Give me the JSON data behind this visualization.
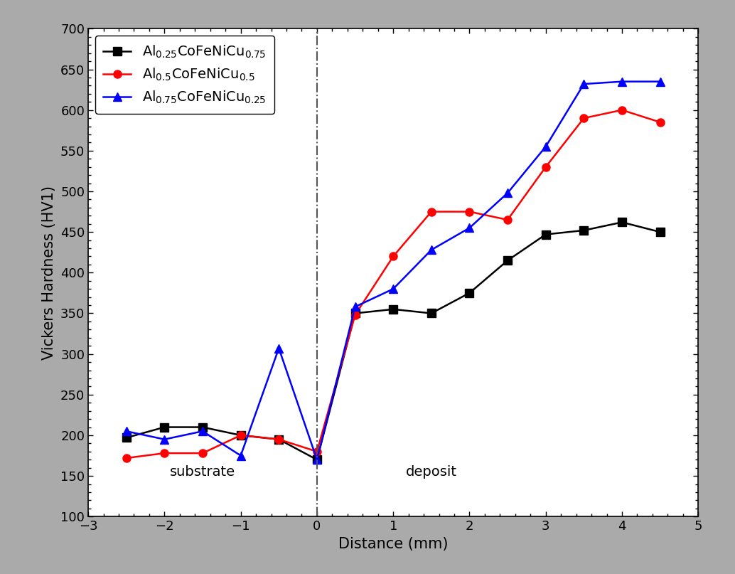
{
  "xlabel": "Distance (mm)",
  "ylabel": "Vickers Hardness (HV1)",
  "xlim": [
    -3,
    5
  ],
  "ylim": [
    100,
    700
  ],
  "yticks": [
    100,
    150,
    200,
    250,
    300,
    350,
    400,
    450,
    500,
    550,
    600,
    650,
    700
  ],
  "xticks": [
    -3,
    -2,
    -1,
    0,
    1,
    2,
    3,
    4,
    5
  ],
  "vline_x": 0,
  "substrate_label": "substrate",
  "deposit_label": "deposit",
  "substrate_x": -1.5,
  "substrate_y": 155,
  "deposit_x": 1.5,
  "deposit_y": 155,
  "series": [
    {
      "color": "#000000",
      "marker": "s",
      "label": "Al$_{0.25}$CoFeNiCu$_{0.75}$",
      "x": [
        -2.5,
        -2.0,
        -1.5,
        -1.0,
        -0.5,
        0.0,
        0.5,
        1.0,
        1.5,
        2.0,
        2.5,
        3.0,
        3.5,
        4.0,
        4.5
      ],
      "y": [
        197,
        210,
        210,
        200,
        195,
        170,
        350,
        355,
        350,
        375,
        415,
        447,
        452,
        462,
        450
      ]
    },
    {
      "color": "#ff0000",
      "marker": "o",
      "label": "Al$_{0.5}$CoFeNiCu$_{0.5}$",
      "x": [
        -2.5,
        -2.0,
        -1.5,
        -1.0,
        -0.5,
        0.0,
        0.5,
        1.0,
        1.5,
        2.0,
        2.5,
        3.0,
        3.5,
        4.0,
        4.5
      ],
      "y": [
        172,
        178,
        178,
        200,
        195,
        180,
        348,
        420,
        475,
        475,
        465,
        530,
        590,
        600,
        585
      ]
    },
    {
      "color": "#0000ff",
      "marker": "^",
      "label": "Al$_{0.75}$CoFeNiCu$_{0.25}$",
      "x": [
        -2.5,
        -2.0,
        -1.5,
        -1.0,
        -0.5,
        0.0,
        0.5,
        1.0,
        1.5,
        2.0,
        2.5,
        3.0,
        3.5,
        4.0,
        4.5
      ],
      "y": [
        205,
        195,
        205,
        175,
        307,
        170,
        358,
        380,
        428,
        455,
        498,
        555,
        632,
        635,
        635
      ]
    }
  ],
  "background_color": "#ffffff",
  "outer_bg_color": "#aaaaaa",
  "legend_fontsize": 14,
  "axis_fontsize": 15,
  "tick_fontsize": 13,
  "marker_size": 8,
  "line_width": 1.8
}
